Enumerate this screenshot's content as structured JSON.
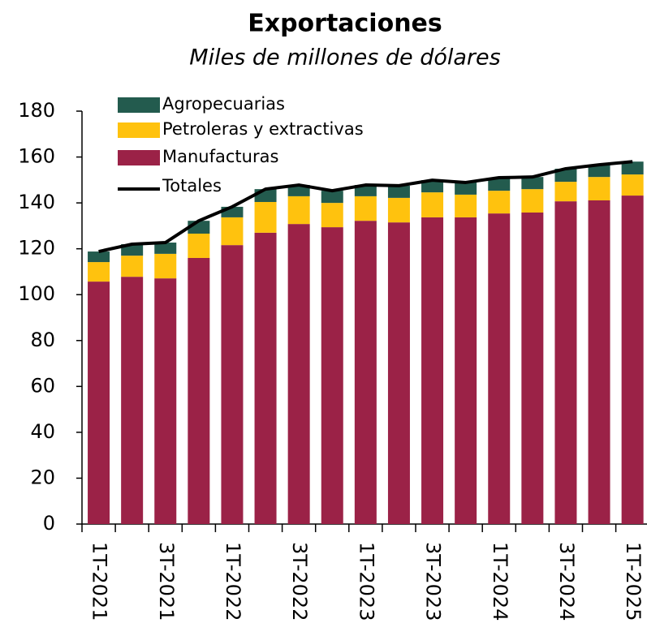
{
  "chart_data": {
    "type": "bar",
    "stacked": true,
    "title": "Exportaciones",
    "subtitle": "Miles de millones de dólares",
    "categories": [
      "1T-2021",
      null,
      "3T-2021",
      null,
      "1T-2022",
      null,
      "3T-2022",
      null,
      "1T-2023",
      null,
      "3T-2023",
      null,
      "1T-2024",
      null,
      "3T-2024",
      null,
      "1T-2025"
    ],
    "series": [
      {
        "name": "Agropecuarias",
        "color": "#235b4e",
        "values": [
          4.6,
          5.0,
          4.9,
          5.6,
          4.6,
          5.6,
          4.9,
          5.3,
          4.9,
          5.3,
          5.3,
          5.3,
          5.7,
          5.3,
          5.7,
          5.3,
          5.6
        ]
      },
      {
        "name": "Petroleras y extractivas",
        "color": "#ffc20e",
        "values": [
          8.5,
          9.2,
          10.7,
          10.6,
          12.1,
          13.4,
          12.1,
          10.6,
          10.7,
          10.7,
          10.9,
          9.9,
          9.9,
          10.2,
          8.5,
          10.2,
          9.2
        ]
      },
      {
        "name": "Manufacturas",
        "color": "#9b2247",
        "values": [
          105.7,
          107.8,
          107.1,
          116,
          121.6,
          127,
          130.8,
          129.4,
          132.2,
          131.5,
          133.7,
          133.7,
          135.4,
          135.8,
          140.7,
          141.1,
          143.2
        ]
      },
      {
        "name": "Totales",
        "color": "#000000",
        "type": "line",
        "values": [
          118.8,
          122,
          122.7,
          132.2,
          138.3,
          146,
          147.8,
          145.3,
          147.8,
          147.5,
          149.9,
          148.9,
          151,
          151.3,
          154.9,
          156.6,
          158
        ]
      }
    ],
    "ylim": [
      0,
      180
    ],
    "yticks": [
      0,
      20,
      40,
      60,
      80,
      100,
      120,
      140,
      160,
      180
    ],
    "grid": false
  }
}
